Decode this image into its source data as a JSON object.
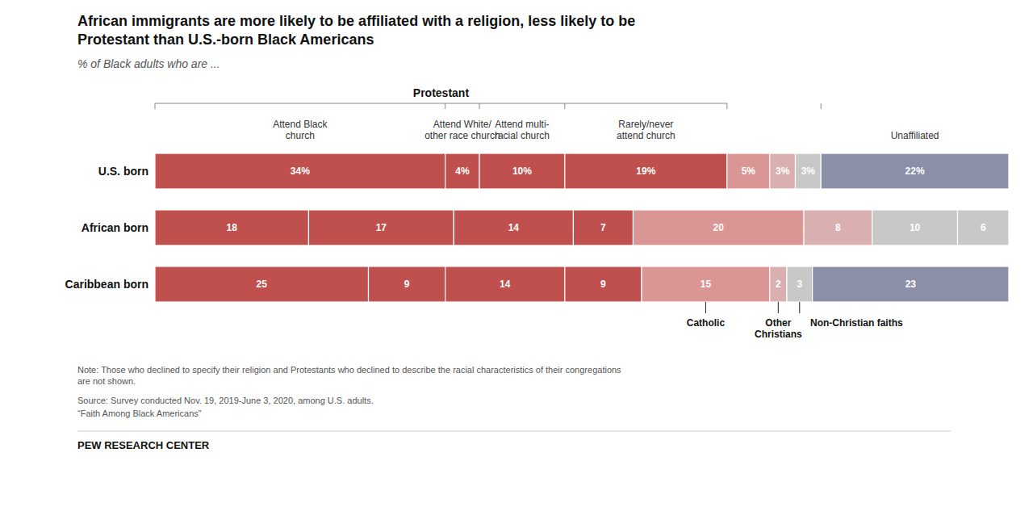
{
  "chart_data": {
    "type": "bar",
    "orientation": "horizontal",
    "stacked": true,
    "data_labels": true,
    "tick_labels": false,
    "grid": false,
    "title": "African immigrants are more likely to be affiliated with a religion, less likely to be\nProtestant than U.S.-born Black Americans",
    "subtitle": "% of Black adults who are ...",
    "categories": [
      "U.S. born",
      "African born",
      "Caribbean born"
    ],
    "xlim": [
      0,
      100
    ],
    "series": [
      {
        "name": "Attend Black\nchurch",
        "color": "#c0504d",
        "values": [
          34,
          18,
          25
        ],
        "value_labels": [
          "34%",
          "18",
          "25"
        ]
      },
      {
        "name": "Attend White/\nother race church",
        "color": "#c0504d",
        "values": [
          4,
          17,
          9
        ],
        "value_labels": [
          "4%",
          "17",
          "9"
        ]
      },
      {
        "name": "Attend multi-\nracial church",
        "color": "#c0504d",
        "values": [
          10,
          14,
          14
        ],
        "value_labels": [
          "10%",
          "14",
          "14"
        ]
      },
      {
        "name": "Rarely/never\nattend church",
        "color": "#c0504d",
        "values": [
          19,
          7,
          9
        ],
        "value_labels": [
          "19%",
          "7",
          "9"
        ]
      },
      {
        "name": "Catholic",
        "color": "#d99694",
        "values": [
          5,
          20,
          15
        ],
        "value_labels": [
          "5%",
          "20",
          "15"
        ]
      },
      {
        "name": "Other\nChristians",
        "color": "#d9b0af",
        "values": [
          3,
          8,
          2
        ],
        "value_labels": [
          "3%",
          "8",
          "2"
        ]
      },
      {
        "name": "Non-Christian faiths",
        "color": "#c8c8c8",
        "values": [
          3,
          10,
          3
        ],
        "value_labels": [
          "3%",
          "10",
          "3"
        ]
      },
      {
        "color": "#c8c8c8",
        "values": [
          0,
          6,
          0
        ],
        "value_labels": [
          null,
          "6",
          null
        ]
      },
      {
        "name": "Unaffiliated",
        "color": "#8b8fa8",
        "values": [
          22,
          0,
          23
        ],
        "value_labels": [
          "22%",
          null,
          "23"
        ]
      }
    ],
    "groups": [
      {
        "name": "Protestant",
        "series": [
          0,
          1,
          2,
          3
        ]
      }
    ],
    "note": "Note: Those who declined to specify their religion and Protestants who declined to describe the racial characteristics of their congregations\nare not shown.",
    "source": "Source: Survey conducted Nov. 19, 2019-June 3, 2020, among U.S. adults.",
    "report": "“Faith Among Black Americans”",
    "footer": "PEW RESEARCH CENTER"
  }
}
